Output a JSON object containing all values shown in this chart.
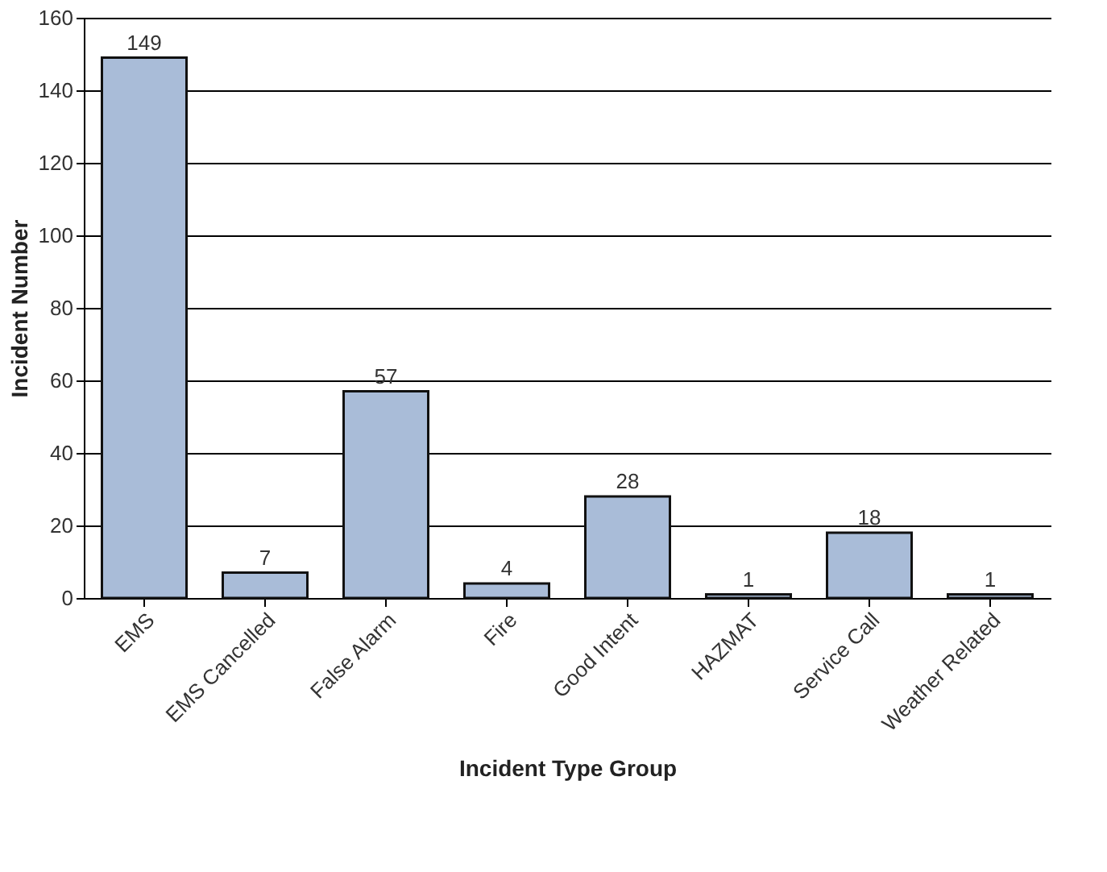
{
  "chart_data": {
    "type": "bar",
    "xlabel": "Incident Type Group",
    "ylabel": "Incident Number",
    "categories": [
      "EMS",
      "EMS Cancelled",
      "False Alarm",
      "Fire",
      "Good Intent",
      "HAZMAT",
      "Service Call",
      "Weather Related"
    ],
    "values": [
      149,
      7,
      57,
      4,
      28,
      1,
      18,
      1
    ],
    "color": "#a9bcd8",
    "ylim": [
      0,
      160
    ],
    "yticks": [
      0,
      20,
      40,
      60,
      80,
      100,
      120,
      140,
      160
    ],
    "grid": "y",
    "data_labels": true
  }
}
